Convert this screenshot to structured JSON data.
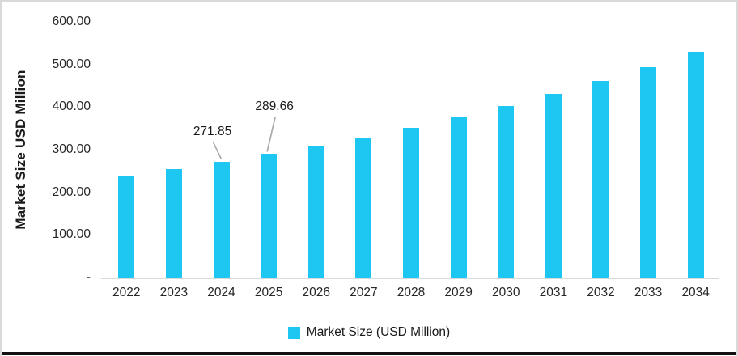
{
  "chart_data": {
    "type": "bar",
    "title": "",
    "xlabel": "",
    "ylabel": "Market Size USD Million",
    "categories": [
      "2022",
      "2023",
      "2024",
      "2025",
      "2026",
      "2027",
      "2028",
      "2029",
      "2030",
      "2031",
      "2032",
      "2033",
      "2034"
    ],
    "series": [
      {
        "name": "Market Size (USD Million)",
        "values": [
          238,
          255,
          271.85,
          289.66,
          310,
          329,
          352,
          376,
          403,
          431,
          462,
          494,
          530
        ]
      }
    ],
    "annotations": [
      {
        "category": "2024",
        "label": "271.85"
      },
      {
        "category": "2025",
        "label": "289.66"
      }
    ],
    "y_ticks": [
      {
        "value": 600,
        "label": "600.00"
      },
      {
        "value": 500,
        "label": "500.00"
      },
      {
        "value": 400,
        "label": "400.00"
      },
      {
        "value": 300,
        "label": "300.00"
      },
      {
        "value": 200,
        "label": "200.00"
      },
      {
        "value": 100,
        "label": "100.00"
      },
      {
        "value": 0,
        "label": "-"
      }
    ],
    "ylim": [
      0,
      600
    ],
    "grid": false,
    "legend_position": "bottom",
    "colors": {
      "bar": "#1EC7F2",
      "axis_line": "#D9D9D9",
      "leader_line": "#A6A6A6",
      "text": "#1A1A1A",
      "frame_border": "#D9D9D9",
      "bottom_rule": "#111111"
    }
  }
}
